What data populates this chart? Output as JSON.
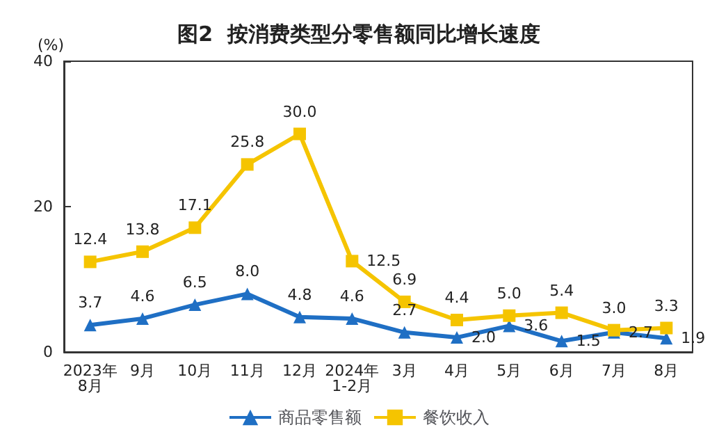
{
  "chart_data": {
    "type": "line",
    "title": "图2  按消费类型分零售额同比增长速度",
    "ylabel": "(%)",
    "categories": [
      "2023年\n8月",
      "9月",
      "10月",
      "11月",
      "12月",
      "2024年\n1-2月",
      "3月",
      "4月",
      "5月",
      "6月",
      "7月",
      "8月"
    ],
    "series": [
      {
        "name": "商品零售额",
        "color": "#1f6fc4",
        "marker": "triangle",
        "values": [
          3.7,
          4.6,
          6.5,
          8.0,
          4.8,
          4.6,
          2.7,
          2.0,
          3.6,
          1.5,
          2.7,
          1.9
        ],
        "value_labels": [
          "3.7",
          "4.6",
          "6.5",
          "8.0",
          "4.8",
          "4.6",
          "2.7",
          "2.0",
          "3.6",
          "1.5",
          "2.7",
          "1.9"
        ]
      },
      {
        "name": "餐饮收入",
        "color": "#f5c400",
        "marker": "square",
        "values": [
          12.4,
          13.8,
          17.1,
          25.8,
          30.0,
          12.5,
          6.9,
          4.4,
          5.0,
          5.4,
          3.0,
          3.3
        ],
        "value_labels": [
          "12.4",
          "13.8",
          "17.1",
          "25.8",
          "30.0",
          "12.5",
          "6.9",
          "4.4",
          "5.0",
          "5.4",
          "3.0",
          "3.3"
        ]
      }
    ],
    "ylim": [
      0,
      40
    ],
    "yticks": [
      0,
      20,
      40
    ],
    "grid": false,
    "legend": "bottom",
    "line_style": "solid"
  }
}
